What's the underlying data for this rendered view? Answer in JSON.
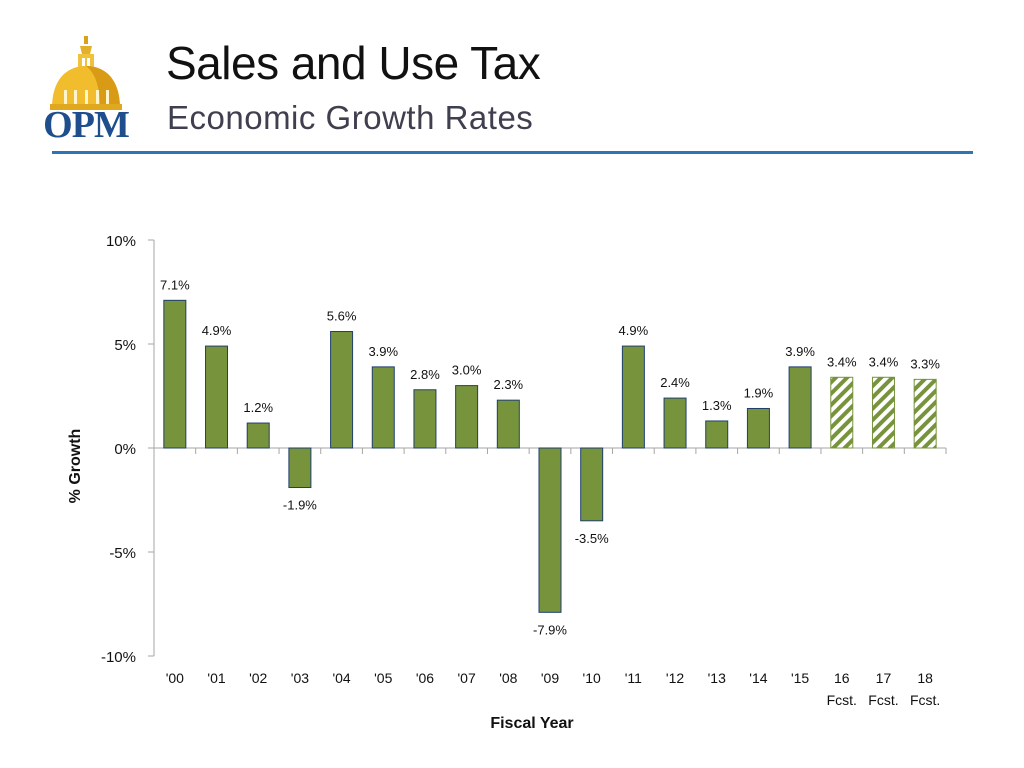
{
  "header": {
    "title": "Sales and Use Tax",
    "subtitle": "Economic Growth Rates",
    "logo_text": "OPM"
  },
  "colors": {
    "bar_fill": "#77933c",
    "bar_stroke": "#1f3f6e",
    "forecast_stripe": "#77933c",
    "rule": "#2e75b6"
  },
  "chart_data": {
    "type": "bar",
    "title": "Sales and Use Tax",
    "subtitle": "Economic Growth Rates",
    "xlabel": "Fiscal Year",
    "ylabel": "% Growth",
    "ylim": [
      -10,
      10
    ],
    "yticks": [
      10,
      5,
      0,
      -5,
      -10
    ],
    "ytick_labels": [
      "10%",
      "5%",
      "0%",
      "-5%",
      "-10%"
    ],
    "categories": [
      {
        "label": "'00",
        "sub": ""
      },
      {
        "label": "'01",
        "sub": ""
      },
      {
        "label": "'02",
        "sub": ""
      },
      {
        "label": "'03",
        "sub": ""
      },
      {
        "label": "'04",
        "sub": ""
      },
      {
        "label": "'05",
        "sub": ""
      },
      {
        "label": "'06",
        "sub": ""
      },
      {
        "label": "'07",
        "sub": ""
      },
      {
        "label": "'08",
        "sub": ""
      },
      {
        "label": "'09",
        "sub": ""
      },
      {
        "label": "'10",
        "sub": ""
      },
      {
        "label": "'11",
        "sub": ""
      },
      {
        "label": "'12",
        "sub": ""
      },
      {
        "label": "'13",
        "sub": ""
      },
      {
        "label": "'14",
        "sub": ""
      },
      {
        "label": "'15",
        "sub": ""
      },
      {
        "label": "16",
        "sub": "Fcst."
      },
      {
        "label": "17",
        "sub": "Fcst."
      },
      {
        "label": "18",
        "sub": "Fcst."
      }
    ],
    "values": [
      7.1,
      4.9,
      1.2,
      -1.9,
      5.6,
      3.9,
      2.8,
      3.0,
      2.3,
      -7.9,
      -3.5,
      4.9,
      2.4,
      1.3,
      1.9,
      3.9,
      3.4,
      3.4,
      3.3
    ],
    "data_labels": [
      "7.1%",
      "4.9%",
      "1.2%",
      "-1.9%",
      "5.6%",
      "3.9%",
      "2.8%",
      "3.0%",
      "2.3%",
      "-7.9%",
      "-3.5%",
      "4.9%",
      "2.4%",
      "1.3%",
      "1.9%",
      "3.9%",
      "3.4%",
      "3.4%",
      "3.3%"
    ],
    "forecast": [
      false,
      false,
      false,
      false,
      false,
      false,
      false,
      false,
      false,
      false,
      false,
      false,
      false,
      false,
      false,
      false,
      true,
      true,
      true
    ],
    "grid": false,
    "legend": "none"
  }
}
